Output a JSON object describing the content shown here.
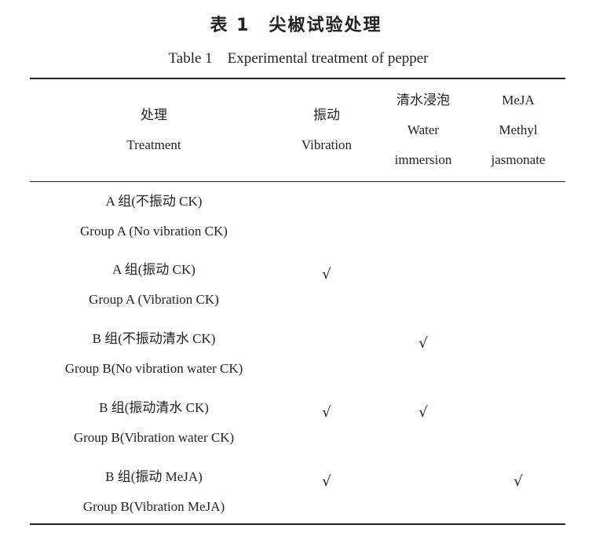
{
  "title": "表 1　尖椒试验处理",
  "subtitle": "Table 1　Experimental treatment of pepper",
  "columns": [
    {
      "zh": "处理",
      "en": "Treatment"
    },
    {
      "zh": "振动",
      "en": "Vibration"
    },
    {
      "zh": "清水浸泡",
      "en": "Water",
      "en2": "immersion"
    },
    {
      "zh": "MeJA",
      "en": "Methyl",
      "en2": "jasmonate"
    }
  ],
  "check_mark": "√",
  "rows": [
    {
      "zh": "A 组(不振动 CK)",
      "en": "Group A (No vibration CK)",
      "vibration": false,
      "water": false,
      "meja": false
    },
    {
      "zh": "A 组(振动 CK)",
      "en": "Group A (Vibration CK)",
      "vibration": true,
      "water": false,
      "meja": false
    },
    {
      "zh": "B 组(不振动清水 CK)",
      "en": "Group B(No vibration water CK)",
      "vibration": false,
      "water": true,
      "meja": false
    },
    {
      "zh": "B 组(振动清水 CK)",
      "en": "Group B(Vibration water CK)",
      "vibration": true,
      "water": true,
      "meja": false
    },
    {
      "zh": "B 组(振动 MeJA)",
      "en": "Group B(Vibration MeJA)",
      "vibration": true,
      "water": false,
      "meja": true
    }
  ]
}
